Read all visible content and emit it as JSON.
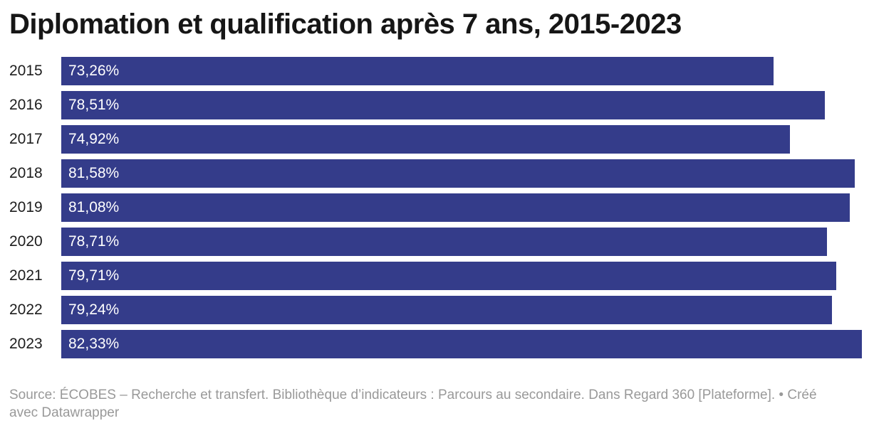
{
  "title": "Diplomation et qualification après 7 ans, 2015-2023",
  "chart_data": {
    "type": "bar",
    "orientation": "horizontal",
    "title": "Diplomation et qualification après 7 ans, 2015-2023",
    "categories": [
      "2015",
      "2016",
      "2017",
      "2018",
      "2019",
      "2020",
      "2021",
      "2022",
      "2023"
    ],
    "values": [
      73.26,
      78.51,
      74.92,
      81.58,
      81.08,
      78.71,
      79.71,
      79.24,
      82.33
    ],
    "value_labels": [
      "73,26%",
      "78,51%",
      "74,92%",
      "81,58%",
      "81,08%",
      "78,71%",
      "79,71%",
      "79,24%",
      "82,33%"
    ],
    "xlabel": "",
    "ylabel": "",
    "xlim": [
      0,
      82.33
    ],
    "grid": false,
    "legend": "none",
    "bar_color": "#343c8a",
    "value_label_color": "#ffffff",
    "category_label_color": "#1d1d1d"
  },
  "footer": {
    "source_label": "Source:",
    "source_text": "ÉCOBES – Recherche et transfert. Bibliothèque d’indicateurs : Parcours au secondaire. Dans Regard 360 [Plateforme].",
    "separator": "•",
    "attribution": "Créé avec Datawrapper"
  }
}
